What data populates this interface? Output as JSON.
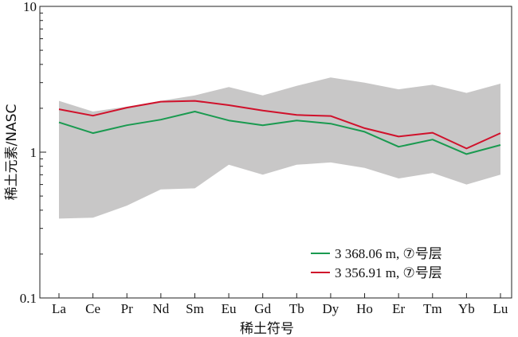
{
  "chart_data": {
    "type": "line",
    "categories": [
      "La",
      "Ce",
      "Pr",
      "Nd",
      "Sm",
      "Eu",
      "Gd",
      "Tb",
      "Dy",
      "Ho",
      "Er",
      "Tm",
      "Yb",
      "Lu"
    ],
    "xlabel": "稀土符号",
    "ylabel": "稀土元素/NASC",
    "yscale": "log",
    "ylim": [
      0.1,
      10
    ],
    "yticks": [
      0.1,
      1,
      10
    ],
    "ytick_labels": [
      "0.1",
      "1",
      "10"
    ],
    "grid": false,
    "legend_position": "bottom-right",
    "band": {
      "upper": [
        2.25,
        1.9,
        2.05,
        2.25,
        2.45,
        2.8,
        2.45,
        2.85,
        3.25,
        3.0,
        2.7,
        2.9,
        2.55,
        2.95
      ],
      "lower": [
        0.35,
        0.355,
        0.43,
        0.555,
        0.565,
        0.82,
        0.7,
        0.82,
        0.85,
        0.78,
        0.66,
        0.72,
        0.6,
        0.7
      ],
      "color": "#c8c7c7"
    },
    "series": [
      {
        "name": "3 368.06 m, ⑦号层",
        "color": "#1a9a50",
        "values": [
          1.6,
          1.35,
          1.53,
          1.67,
          1.9,
          1.65,
          1.53,
          1.65,
          1.57,
          1.38,
          1.09,
          1.22,
          0.97,
          1.12
        ]
      },
      {
        "name": "3 356.91 m, ⑦号层",
        "color": "#d0112b",
        "values": [
          1.97,
          1.78,
          2.02,
          2.22,
          2.25,
          2.1,
          1.93,
          1.8,
          1.77,
          1.46,
          1.28,
          1.36,
          1.06,
          1.35
        ]
      }
    ]
  }
}
